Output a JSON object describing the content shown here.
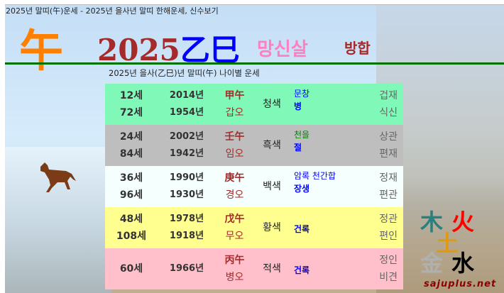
{
  "page_title": "2025년 말띠(午)운세 - 2025년 을사년 말띠 한해운세, 신수보기",
  "header": {
    "zodiac_char": "午",
    "year": "2025",
    "year_ganzhi": "乙巳",
    "mangsinsal": "망신살",
    "banghap": "방합"
  },
  "subtitle": "2025년 을사(乙巳)년 말띠(午) 나이별 운세",
  "rows": [
    {
      "bg": "#80f8b8",
      "ages": [
        "12세",
        "72세"
      ],
      "years": [
        "2014년",
        "1954년"
      ],
      "ganzhi_hanja": "甲午",
      "ganzhi_hangul": "갑오",
      "color": "청색",
      "shinsal": [
        {
          "text": "문창",
          "c": "#0000ff",
          "b": false
        },
        {
          "text": "병",
          "c": "#0000ff",
          "b": true
        }
      ],
      "sipsin": [
        "겁재",
        "식신"
      ]
    },
    {
      "bg": "#bebebe",
      "ages": [
        "24세",
        "84세"
      ],
      "years": [
        "2002년",
        "1942년"
      ],
      "ganzhi_hanja": "壬午",
      "ganzhi_hangul": "임오",
      "color": "흑색",
      "shinsal": [
        {
          "text": "천을",
          "c": "#008000",
          "b": false
        },
        {
          "text": "절",
          "c": "#0000ff",
          "b": true
        }
      ],
      "sipsin": [
        "상관",
        "편재"
      ]
    },
    {
      "bg": "#f4fffe",
      "ages": [
        "36세",
        "96세"
      ],
      "years": [
        "1990년",
        "1930년"
      ],
      "ganzhi_hanja": "庚午",
      "ganzhi_hangul": "경오",
      "color": "백색",
      "shinsal": [
        {
          "text": "암록 천간합",
          "c": "#0000ff",
          "b": false
        },
        {
          "text": "장생",
          "c": "#0000ff",
          "b": true
        }
      ],
      "sipsin": [
        "정재",
        "편관"
      ]
    },
    {
      "bg": "#ffff90",
      "ages": [
        "48세",
        "108세"
      ],
      "years": [
        "1978년",
        "1918년"
      ],
      "ganzhi_hanja": "戊午",
      "ganzhi_hangul": "무오",
      "color": "황색",
      "shinsal": [
        {
          "text": "건록",
          "c": "#0000ff",
          "b": true
        }
      ],
      "sipsin": [
        "정관",
        "편인"
      ]
    },
    {
      "bg": "#ffc0cb",
      "ages": [
        "60세"
      ],
      "years": [
        "1966년"
      ],
      "ganzhi_hanja": "丙午",
      "ganzhi_hangul": "병오",
      "color": "적색",
      "shinsal": [
        {
          "text": "건록",
          "c": "#0000ff",
          "b": true
        }
      ],
      "sipsin": [
        "정인",
        "비견"
      ]
    }
  ],
  "ohaeng": {
    "wood": "木",
    "fire": "火",
    "earth": "土",
    "metal": "金",
    "water": "水"
  },
  "site": "sajuplus.net"
}
